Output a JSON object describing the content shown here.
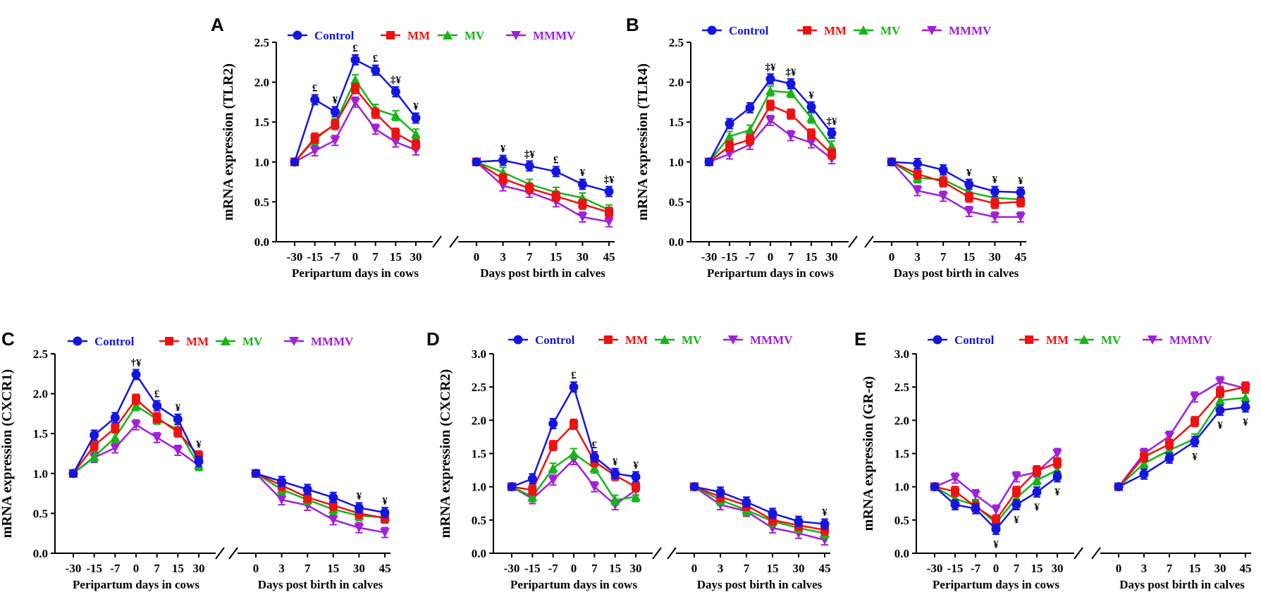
{
  "figure": {
    "legend_labels": [
      "Control",
      "MM",
      "MV",
      "MMMV"
    ],
    "series_colors": {
      "Control": "#1515e0",
      "MM": "#ee1111",
      "MV": "#16b416",
      "MMMV": "#a020d8"
    },
    "y_axis_ticks": [
      "0.0",
      "0.5",
      "1.0",
      "1.5",
      "2.0",
      "2.5",
      "3.0"
    ]
  },
  "chart_data": [
    {
      "type": "line",
      "panel": "A",
      "ylabel": "mRNA expression (TLR2)",
      "ylim": [
        0,
        2.5
      ],
      "segments": [
        {
          "xlabel": "Peripartum days in cows",
          "categories": [
            "-30",
            "-15",
            "-7",
            "0",
            "7",
            "15",
            "30"
          ]
        },
        {
          "xlabel": "Days post birth in calves",
          "categories": [
            "0",
            "3",
            "7",
            "15",
            "30",
            "45"
          ]
        }
      ],
      "series": [
        {
          "name": "Control",
          "values": [
            [
              1.0,
              1.78,
              1.63,
              2.28,
              2.15,
              1.88,
              1.55
            ],
            [
              1.0,
              1.02,
              0.95,
              0.88,
              0.72,
              0.63
            ]
          ]
        },
        {
          "name": "MM",
          "values": [
            [
              1.0,
              1.3,
              1.47,
              1.92,
              1.61,
              1.36,
              1.22
            ],
            [
              1.0,
              0.79,
              0.67,
              0.57,
              0.47,
              0.37
            ]
          ]
        },
        {
          "name": "MV",
          "values": [
            [
              1.0,
              1.28,
              1.48,
              2.03,
              1.66,
              1.58,
              1.35
            ],
            [
              1.0,
              0.87,
              0.72,
              0.62,
              0.55,
              0.4
            ]
          ]
        },
        {
          "name": "MMMV",
          "values": [
            [
              1.0,
              1.14,
              1.27,
              1.75,
              1.41,
              1.25,
              1.15
            ],
            [
              1.0,
              0.7,
              0.62,
              0.5,
              0.31,
              0.25
            ]
          ]
        }
      ],
      "annotations": [
        [
          "£",
          "¥",
          "£",
          "£",
          "‡¥",
          "¥"
        ],
        [
          "¥",
          "‡¥",
          "£",
          "¥",
          "‡¥"
        ]
      ]
    },
    {
      "type": "line",
      "panel": "B",
      "ylabel": "mRNA expression (TLR4)",
      "ylim": [
        0,
        2.5
      ],
      "segments": [
        {
          "xlabel": "Peripartum days in cows",
          "categories": [
            "-30",
            "-15",
            "-7",
            "0",
            "7",
            "15",
            "30"
          ]
        },
        {
          "xlabel": "Days post birth in calves",
          "categories": [
            "0",
            "3",
            "7",
            "15",
            "30",
            "45"
          ]
        }
      ],
      "series": [
        {
          "name": "Control",
          "values": [
            [
              1.0,
              1.48,
              1.68,
              2.04,
              1.98,
              1.69,
              1.36
            ],
            [
              1.0,
              0.98,
              0.9,
              0.72,
              0.63,
              0.62
            ]
          ]
        },
        {
          "name": "MM",
          "values": [
            [
              1.0,
              1.2,
              1.28,
              1.71,
              1.6,
              1.35,
              1.1
            ],
            [
              1.0,
              0.85,
              0.75,
              0.56,
              0.48,
              0.5
            ]
          ]
        },
        {
          "name": "MV",
          "values": [
            [
              1.0,
              1.32,
              1.4,
              1.89,
              1.87,
              1.55,
              1.2
            ],
            [
              1.0,
              0.8,
              0.78,
              0.62,
              0.55,
              0.53
            ]
          ]
        },
        {
          "name": "MMMV",
          "values": [
            [
              1.0,
              1.1,
              1.22,
              1.52,
              1.33,
              1.24,
              1.04
            ],
            [
              1.0,
              0.64,
              0.57,
              0.38,
              0.31,
              0.31
            ]
          ]
        }
      ],
      "annotations": [
        [
          "‡¥",
          "‡¥",
          "¥",
          "‡¥"
        ],
        [
          "¥",
          "¥",
          "¥"
        ]
      ]
    },
    {
      "type": "line",
      "panel": "C",
      "ylabel": "mRNA expression (CXCR1)",
      "ylim": [
        0,
        2.5
      ],
      "segments": [
        {
          "xlabel": "Peripartum days in cows",
          "categories": [
            "-30",
            "-15",
            "-7",
            "0",
            "7",
            "15",
            "30"
          ]
        },
        {
          "xlabel": "Days post birth in calves",
          "categories": [
            "0",
            "3",
            "7",
            "15",
            "30",
            "45"
          ]
        }
      ],
      "series": [
        {
          "name": "Control",
          "values": [
            [
              1.0,
              1.48,
              1.7,
              2.24,
              1.85,
              1.68,
              1.15
            ],
            [
              1.0,
              0.9,
              0.8,
              0.7,
              0.57,
              0.51
            ]
          ]
        },
        {
          "name": "MM",
          "values": [
            [
              1.0,
              1.35,
              1.57,
              1.93,
              1.7,
              1.52,
              1.22
            ],
            [
              1.0,
              0.85,
              0.7,
              0.6,
              0.5,
              0.44
            ]
          ]
        },
        {
          "name": "MV",
          "values": [
            [
              1.0,
              1.21,
              1.45,
              1.85,
              1.68,
              1.55,
              1.1
            ],
            [
              1.0,
              0.8,
              0.67,
              0.55,
              0.47,
              0.45
            ]
          ]
        },
        {
          "name": "MMMV",
          "values": [
            [
              1.0,
              1.2,
              1.32,
              1.61,
              1.45,
              1.29,
              1.1
            ],
            [
              1.0,
              0.67,
              0.6,
              0.42,
              0.32,
              0.26
            ]
          ]
        }
      ],
      "annotations": [
        [
          "†¥",
          "£",
          "¥",
          "¥"
        ],
        [
          "¥",
          "¥"
        ]
      ]
    },
    {
      "type": "line",
      "panel": "D",
      "ylabel": "mRNA expression (CXCR2)",
      "ylim": [
        0,
        3.0
      ],
      "segments": [
        {
          "xlabel": "Peripartum days in cows",
          "categories": [
            "-30",
            "-15",
            "-7",
            "0",
            "7",
            "15",
            "30"
          ]
        },
        {
          "xlabel": "Days post birth in calves",
          "categories": [
            "0",
            "3",
            "7",
            "15",
            "30",
            "45"
          ]
        }
      ],
      "series": [
        {
          "name": "Control",
          "values": [
            [
              1.0,
              1.12,
              1.95,
              2.5,
              1.45,
              1.2,
              1.15
            ],
            [
              1.0,
              0.92,
              0.77,
              0.6,
              0.48,
              0.44
            ]
          ]
        },
        {
          "name": "MM",
          "values": [
            [
              1.0,
              0.95,
              1.62,
              1.94,
              1.38,
              1.17,
              1.0
            ],
            [
              1.0,
              0.85,
              0.72,
              0.5,
              0.42,
              0.35
            ]
          ]
        },
        {
          "name": "MV",
          "values": [
            [
              1.0,
              0.85,
              1.28,
              1.5,
              1.28,
              0.8,
              0.85
            ],
            [
              1.0,
              0.8,
              0.65,
              0.48,
              0.38,
              0.3
            ]
          ]
        },
        {
          "name": "MMMV",
          "values": [
            [
              1.0,
              0.82,
              1.1,
              1.41,
              1.0,
              0.73,
              0.95
            ],
            [
              1.0,
              0.73,
              0.63,
              0.38,
              0.3,
              0.2
            ]
          ]
        }
      ],
      "annotations": [
        [
          "£",
          "£",
          "¥",
          "¥"
        ],
        [
          "¥"
        ]
      ]
    },
    {
      "type": "line",
      "panel": "E",
      "ylabel": "mRNA expression (GR-α)",
      "ylim": [
        0,
        3.0
      ],
      "segments": [
        {
          "xlabel": "Peripartum days in cows",
          "categories": [
            "-30",
            "-15",
            "-7",
            "0",
            "7",
            "15",
            "30"
          ]
        },
        {
          "xlabel": "Days post birth in calves",
          "categories": [
            "0",
            "3",
            "7",
            "15",
            "30",
            "45"
          ]
        }
      ],
      "series": [
        {
          "name": "Control",
          "values": [
            [
              1.0,
              0.73,
              0.67,
              0.36,
              0.73,
              0.92,
              1.15
            ],
            [
              1.0,
              1.19,
              1.43,
              1.68,
              2.15,
              2.2
            ]
          ]
        },
        {
          "name": "MM",
          "values": [
            [
              1.0,
              0.93,
              0.7,
              0.5,
              0.93,
              1.24,
              1.36
            ],
            [
              1.0,
              1.45,
              1.64,
              1.98,
              2.42,
              2.5
            ]
          ]
        },
        {
          "name": "MV",
          "values": [
            [
              1.0,
              0.82,
              0.72,
              0.45,
              0.83,
              1.1,
              1.25
            ],
            [
              1.0,
              1.35,
              1.55,
              1.72,
              2.3,
              2.34
            ]
          ]
        },
        {
          "name": "MMMV",
          "values": [
            [
              1.0,
              1.13,
              0.88,
              0.65,
              1.15,
              1.22,
              1.5
            ],
            [
              1.0,
              1.5,
              1.76,
              2.35,
              2.58,
              2.48
            ]
          ]
        }
      ],
      "annotations": [
        [
          "¥",
          "¥",
          "¥",
          "¥"
        ],
        [
          "¥",
          "¥",
          "¥"
        ]
      ]
    }
  ]
}
